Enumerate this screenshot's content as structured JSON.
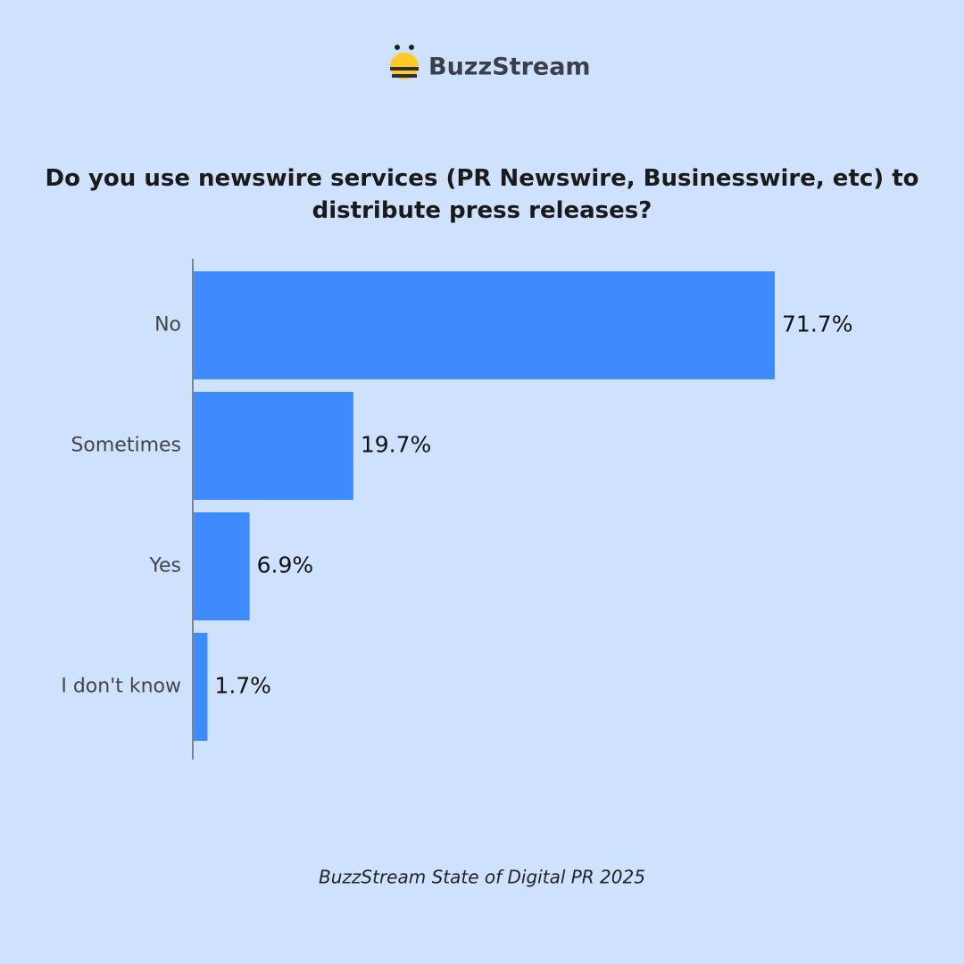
{
  "logo": "BuzzStream",
  "chart_data": {
    "type": "bar",
    "orientation": "horizontal",
    "title": "Do you use newswire services (PR Newswire, Businesswire, etc) to distribute press releases?",
    "categories": [
      "No",
      "Sometimes",
      "Yes",
      "I don't know"
    ],
    "values": [
      71.7,
      19.7,
      6.9,
      1.7
    ],
    "value_labels": [
      "71.7%",
      "19.7%",
      "6.9%",
      "1.7%"
    ],
    "color": "#3d8bfd",
    "source": "BuzzStream State of Digital PR 2025"
  }
}
